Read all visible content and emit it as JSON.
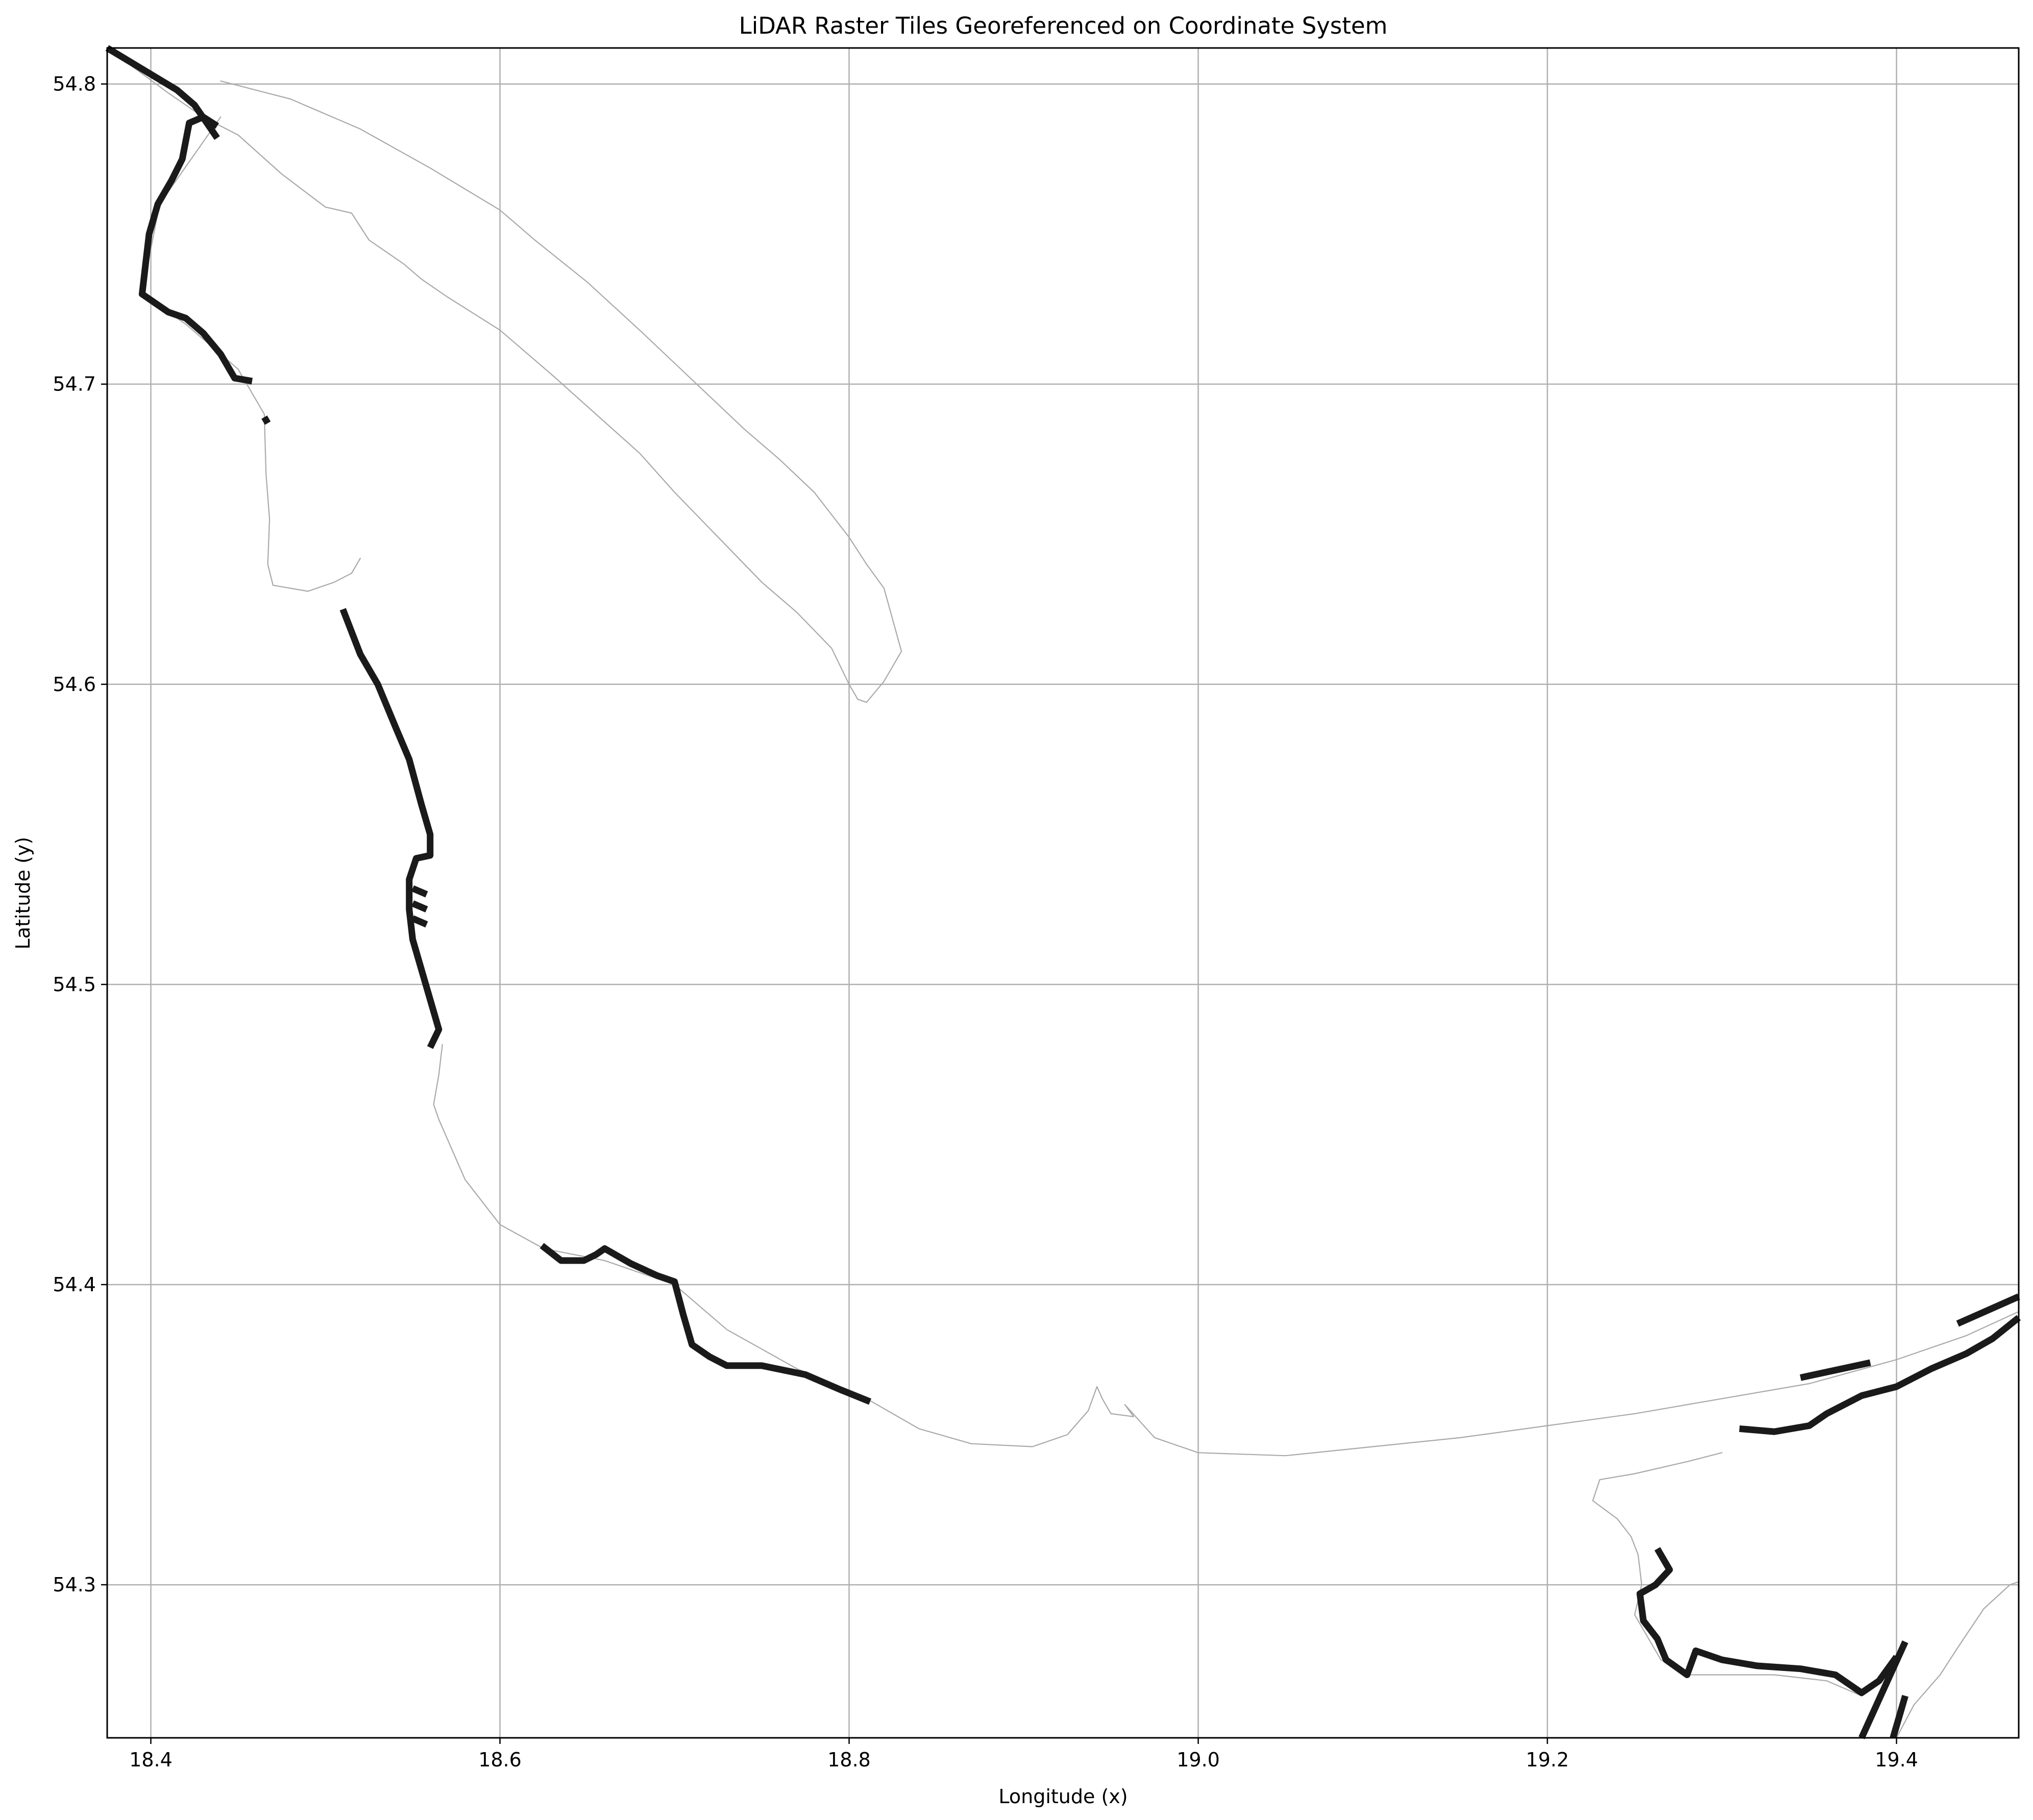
{
  "chart_data": {
    "type": "map",
    "title": "LiDAR Raster Tiles Georeferenced on Coordinate System",
    "xlabel": "Longitude (x)",
    "ylabel": "Latitude (y)",
    "xlim": [
      18.375,
      19.47
    ],
    "ylim": [
      54.249,
      54.812
    ],
    "grid": true,
    "x_ticks": [
      18.4,
      18.6,
      18.8,
      19.0,
      19.2,
      19.4
    ],
    "x_tick_labels": [
      "18.4",
      "18.6",
      "18.8",
      "19.0",
      "19.2",
      "19.4"
    ],
    "y_ticks": [
      54.3,
      54.4,
      54.5,
      54.6,
      54.7,
      54.8
    ],
    "y_tick_labels": [
      "54.3",
      "54.4",
      "54.5",
      "54.6",
      "54.7",
      "54.8"
    ],
    "colors": {
      "coastline": "#a9a9a9",
      "lidar_tiles": "#1a1a1a",
      "grid": "#b0b0b0"
    },
    "coastline": [
      [
        [
          18.375,
          54.812
        ],
        [
          18.41,
          54.797
        ],
        [
          18.43,
          54.789
        ],
        [
          18.45,
          54.783
        ],
        [
          18.475,
          54.77
        ],
        [
          18.5,
          54.759
        ],
        [
          18.515,
          54.757
        ],
        [
          18.525,
          54.748
        ],
        [
          18.545,
          54.74
        ],
        [
          18.555,
          54.735
        ],
        [
          18.57,
          54.729
        ],
        [
          18.6,
          54.718
        ],
        [
          18.63,
          54.703
        ],
        [
          18.655,
          54.69
        ],
        [
          18.68,
          54.677
        ],
        [
          18.7,
          54.664
        ],
        [
          18.73,
          54.646
        ],
        [
          18.75,
          54.634
        ],
        [
          18.77,
          54.624
        ],
        [
          18.79,
          54.612
        ],
        [
          18.8,
          54.6
        ],
        [
          18.805,
          54.595
        ],
        [
          18.81,
          54.594
        ],
        [
          18.82,
          54.601
        ],
        [
          18.83,
          54.611
        ],
        [
          18.82,
          54.632
        ],
        [
          18.81,
          54.64
        ],
        [
          18.8,
          54.649
        ],
        [
          18.78,
          54.664
        ],
        [
          18.76,
          54.675
        ],
        [
          18.74,
          54.685
        ],
        [
          18.72,
          54.696
        ],
        [
          18.7,
          54.707
        ],
        [
          18.68,
          54.718
        ],
        [
          18.65,
          54.734
        ],
        [
          18.62,
          54.748
        ],
        [
          18.6,
          54.758
        ],
        [
          18.56,
          54.772
        ],
        [
          18.52,
          54.785
        ],
        [
          18.48,
          54.795
        ],
        [
          18.44,
          54.801
        ]
      ],
      [
        [
          18.44,
          54.789
        ],
        [
          18.405,
          54.76
        ],
        [
          18.395,
          54.73
        ],
        [
          18.42,
          54.72
        ],
        [
          18.45,
          54.705
        ],
        [
          18.465,
          54.69
        ],
        [
          18.466,
          54.67
        ],
        [
          18.468,
          54.655
        ],
        [
          18.467,
          54.64
        ],
        [
          18.47,
          54.633
        ],
        [
          18.49,
          54.631
        ],
        [
          18.505,
          54.634
        ],
        [
          18.515,
          54.637
        ],
        [
          18.52,
          54.642
        ]
      ],
      [
        [
          18.567,
          54.48
        ],
        [
          18.565,
          54.47
        ],
        [
          18.562,
          54.46
        ],
        [
          18.565,
          54.455
        ],
        [
          18.58,
          54.435
        ],
        [
          18.6,
          54.42
        ],
        [
          18.625,
          54.412
        ],
        [
          18.66,
          54.408
        ],
        [
          18.7,
          54.4
        ],
        [
          18.73,
          54.385
        ],
        [
          18.77,
          54.372
        ],
        [
          18.81,
          54.362
        ],
        [
          18.84,
          54.352
        ],
        [
          18.87,
          54.347
        ],
        [
          18.905,
          54.346
        ],
        [
          18.925,
          54.35
        ],
        [
          18.937,
          54.358
        ],
        [
          18.942,
          54.366
        ],
        [
          18.945,
          54.362
        ],
        [
          18.95,
          54.357
        ],
        [
          18.963,
          54.356
        ],
        [
          18.958,
          54.36
        ],
        [
          18.975,
          54.349
        ],
        [
          19.0,
          54.344
        ],
        [
          19.05,
          54.343
        ],
        [
          19.1,
          54.346
        ],
        [
          19.15,
          54.349
        ],
        [
          19.2,
          54.353
        ],
        [
          19.25,
          54.357
        ],
        [
          19.3,
          54.362
        ],
        [
          19.35,
          54.367
        ],
        [
          19.4,
          54.375
        ],
        [
          19.44,
          54.383
        ],
        [
          19.47,
          54.391
        ]
      ],
      [
        [
          19.3,
          54.344
        ],
        [
          19.28,
          54.341
        ],
        [
          19.25,
          54.337
        ],
        [
          19.23,
          54.335
        ],
        [
          19.226,
          54.328
        ],
        [
          19.24,
          54.322
        ],
        [
          19.248,
          54.316
        ],
        [
          19.252,
          54.31
        ],
        [
          19.254,
          54.3
        ],
        [
          19.25,
          54.29
        ],
        [
          19.265,
          54.275
        ],
        [
          19.28,
          54.27
        ],
        [
          19.3,
          54.27
        ],
        [
          19.33,
          54.27
        ],
        [
          19.36,
          54.268
        ],
        [
          19.38,
          54.263
        ]
      ],
      [
        [
          19.4,
          54.249
        ],
        [
          19.41,
          54.26
        ],
        [
          19.425,
          54.27
        ],
        [
          19.435,
          54.279
        ],
        [
          19.45,
          54.292
        ],
        [
          19.465,
          54.3
        ],
        [
          19.47,
          54.301
        ]
      ]
    ],
    "lidar_tracks": [
      [
        [
          18.375,
          54.812
        ],
        [
          18.395,
          54.805
        ],
        [
          18.415,
          54.798
        ],
        [
          18.425,
          54.793
        ],
        [
          18.438,
          54.782
        ]
      ],
      [
        [
          18.438,
          54.786
        ],
        [
          18.43,
          54.789
        ],
        [
          18.422,
          54.787
        ],
        [
          18.418,
          54.775
        ],
        [
          18.412,
          54.768
        ],
        [
          18.404,
          54.76
        ],
        [
          18.399,
          54.75
        ],
        [
          18.397,
          54.74
        ],
        [
          18.395,
          54.73
        ],
        [
          18.41,
          54.724
        ],
        [
          18.42,
          54.722
        ],
        [
          18.43,
          54.717
        ],
        [
          18.44,
          54.71
        ],
        [
          18.448,
          54.702
        ],
        [
          18.458,
          54.701
        ]
      ],
      [
        [
          18.465,
          54.689
        ],
        [
          18.467,
          54.687
        ]
      ],
      [
        [
          18.51,
          54.625
        ],
        [
          18.52,
          54.61
        ],
        [
          18.53,
          54.6
        ],
        [
          18.54,
          54.586
        ],
        [
          18.548,
          54.575
        ],
        [
          18.555,
          54.56
        ],
        [
          18.56,
          54.55
        ],
        [
          18.56,
          54.543
        ],
        [
          18.552,
          54.542
        ],
        [
          18.548,
          54.535
        ],
        [
          18.548,
          54.525
        ],
        [
          18.55,
          54.515
        ],
        [
          18.555,
          54.505
        ],
        [
          18.56,
          54.495
        ],
        [
          18.565,
          54.485
        ],
        [
          18.56,
          54.479
        ]
      ],
      [
        [
          18.55,
          54.532
        ],
        [
          18.558,
          54.53
        ]
      ],
      [
        [
          18.55,
          54.527
        ],
        [
          18.558,
          54.525
        ]
      ],
      [
        [
          18.55,
          54.522
        ],
        [
          18.558,
          54.52
        ]
      ],
      [
        [
          18.624,
          54.413
        ],
        [
          18.635,
          54.408
        ],
        [
          18.648,
          54.408
        ],
        [
          18.655,
          54.41
        ],
        [
          18.66,
          54.412
        ],
        [
          18.675,
          54.407
        ],
        [
          18.69,
          54.403
        ],
        [
          18.7,
          54.401
        ],
        [
          18.705,
          54.39
        ],
        [
          18.71,
          54.38
        ],
        [
          18.72,
          54.376
        ],
        [
          18.73,
          54.373
        ],
        [
          18.75,
          54.373
        ],
        [
          18.775,
          54.37
        ],
        [
          18.795,
          54.365
        ],
        [
          18.812,
          54.361
        ]
      ],
      [
        [
          19.31,
          54.352
        ],
        [
          19.33,
          54.351
        ],
        [
          19.35,
          54.353
        ],
        [
          19.36,
          54.357
        ],
        [
          19.38,
          54.363
        ],
        [
          19.4,
          54.366
        ],
        [
          19.42,
          54.372
        ],
        [
          19.44,
          54.377
        ],
        [
          19.455,
          54.382
        ],
        [
          19.47,
          54.389
        ]
      ],
      [
        [
          19.345,
          54.369
        ],
        [
          19.385,
          54.374
        ]
      ],
      [
        [
          19.435,
          54.387
        ],
        [
          19.47,
          54.396
        ]
      ],
      [
        [
          19.263,
          54.312
        ],
        [
          19.27,
          54.305
        ],
        [
          19.262,
          54.3
        ],
        [
          19.253,
          54.297
        ],
        [
          19.255,
          54.288
        ],
        [
          19.263,
          54.282
        ],
        [
          19.268,
          54.275
        ],
        [
          19.28,
          54.27
        ],
        [
          19.285,
          54.278
        ],
        [
          19.3,
          54.275
        ],
        [
          19.32,
          54.273
        ],
        [
          19.345,
          54.272
        ],
        [
          19.365,
          54.27
        ],
        [
          19.38,
          54.264
        ],
        [
          19.39,
          54.268
        ],
        [
          19.395,
          54.272
        ],
        [
          19.4,
          54.276
        ]
      ],
      [
        [
          19.38,
          54.249
        ],
        [
          19.405,
          54.281
        ]
      ],
      [
        [
          19.398,
          54.249
        ],
        [
          19.405,
          54.263
        ]
      ]
    ]
  }
}
